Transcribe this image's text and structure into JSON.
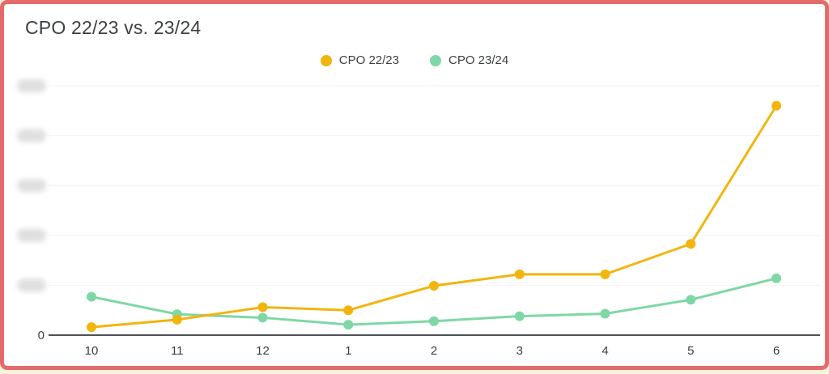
{
  "page": {
    "background_color": "#faf2df",
    "frame_color": "#e46b6b",
    "card_background": "#ffffff"
  },
  "chart_data": {
    "type": "line",
    "title": "CPO 22/23 vs. 23/24",
    "categories": [
      "10",
      "11",
      "12",
      "1",
      "2",
      "3",
      "4",
      "5",
      "6"
    ],
    "series": [
      {
        "name": "CPO 22/23",
        "color": "#F2B50E",
        "values": [
          1.6,
          3.1,
          5.6,
          5.0,
          9.9,
          12.2,
          12.2,
          18.3,
          46.0
        ]
      },
      {
        "name": "CPO 23/24",
        "color": "#7FD7A5",
        "values": [
          7.7,
          4.2,
          3.5,
          2.1,
          2.8,
          3.8,
          4.3,
          7.1,
          11.4
        ]
      }
    ],
    "xlabel": "",
    "ylabel": "",
    "ylim": [
      0,
      50
    ],
    "y_ticks": [
      {
        "value": 0,
        "label": "0",
        "redacted": false
      },
      {
        "value": 10,
        "label": "",
        "redacted": true
      },
      {
        "value": 20,
        "label": "",
        "redacted": true
      },
      {
        "value": 30,
        "label": "",
        "redacted": true
      },
      {
        "value": 40,
        "label": "",
        "redacted": true
      },
      {
        "value": 50,
        "label": "",
        "redacted": true
      }
    ],
    "y_axis_labels_blurred_except_zero": true,
    "grid": "horizontal",
    "legend_position": "top-center",
    "colors": {
      "gridline": "#f2f2f2",
      "axis_line": "#4d5156",
      "tick_text": "#3c4043",
      "redacted_label_blob": "#dfdfdf"
    }
  }
}
